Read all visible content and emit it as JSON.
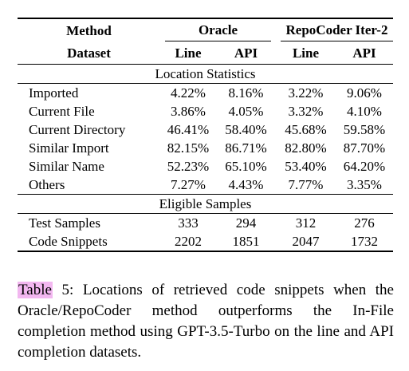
{
  "table": {
    "header1": {
      "method": "Method",
      "oracle": "Oracle",
      "repocoder": "RepoCoder Iter-2"
    },
    "header2": {
      "dataset": "Dataset",
      "line1": "Line",
      "api1": "API",
      "line2": "Line",
      "api2": "API"
    },
    "section1_title": "Location Statistics",
    "location_rows": [
      [
        "Imported",
        "4.22%",
        "8.16%",
        "3.22%",
        "9.06%"
      ],
      [
        "Current File",
        "3.86%",
        "4.05%",
        "3.32%",
        "4.10%"
      ],
      [
        "Current Directory",
        "46.41%",
        "58.40%",
        "45.68%",
        "59.58%"
      ],
      [
        "Similar Import",
        "82.15%",
        "86.71%",
        "82.80%",
        "87.70%"
      ],
      [
        "Similar Name",
        "52.23%",
        "65.10%",
        "53.40%",
        "64.20%"
      ],
      [
        "Others",
        "7.27%",
        "4.43%",
        "7.77%",
        "3.35%"
      ]
    ],
    "section2_title": "Eligible Samples",
    "sample_rows": [
      [
        "Test Samples",
        "333",
        "294",
        "312",
        "276"
      ],
      [
        "Code Snippets",
        "2202",
        "1851",
        "2047",
        "1732"
      ]
    ]
  },
  "caption": {
    "label": "Table",
    "number": " 5:",
    "text": " Locations of retrieved code snippets when the Oracle/RepoCoder method outperforms the In-File completion method using GPT-3.5-Turbo on the line and API completion datasets."
  }
}
